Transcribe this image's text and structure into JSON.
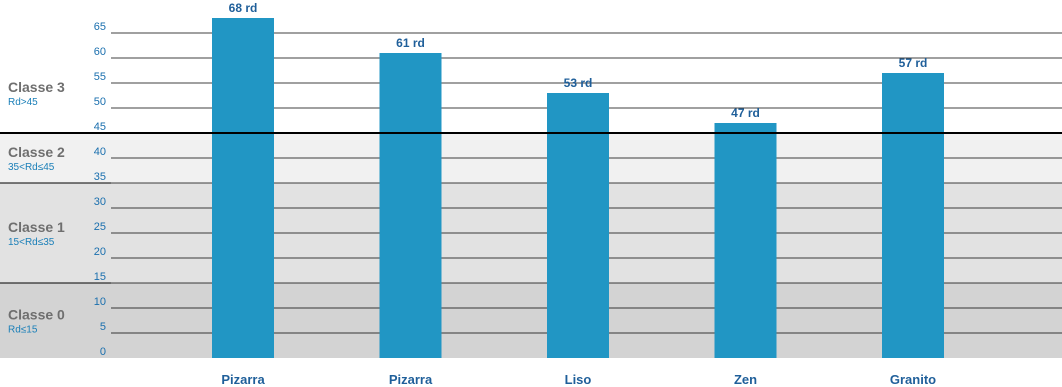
{
  "chart_data": {
    "type": "bar",
    "categories": [
      "Pizarra",
      "Pizarra",
      "Liso",
      "Zen",
      "Granito"
    ],
    "values": [
      68,
      61,
      53,
      47,
      57
    ],
    "data_labels": [
      "68 rd",
      "61 rd",
      "53 rd",
      "47 rd",
      "57 rd"
    ],
    "yticks": [
      0,
      5,
      10,
      15,
      20,
      25,
      30,
      35,
      40,
      45,
      50,
      55,
      60,
      65
    ],
    "ylim": [
      0,
      70
    ],
    "grid": true,
    "bands": [
      {
        "title": "Classe 3",
        "condition": "Rd>45",
        "from": 45,
        "to": 70,
        "color": "#ffffff"
      },
      {
        "title": "Classe 2",
        "condition": "35<Rd≤45",
        "from": 35,
        "to": 45,
        "color": "#f1f1f1"
      },
      {
        "title": "Classe 1",
        "condition": "15<Rd≤35",
        "from": 15,
        "to": 35,
        "color": "#e2e2e2"
      },
      {
        "title": "Classe 0",
        "condition": "Rd≤15",
        "from": 0,
        "to": 15,
        "color": "#d3d3d3"
      }
    ],
    "threshold": 45,
    "colors": {
      "bar": "#2196c4",
      "text": "#1f5f9a",
      "tick": "#1a6fae",
      "band_title": "#6f6f6f"
    }
  }
}
